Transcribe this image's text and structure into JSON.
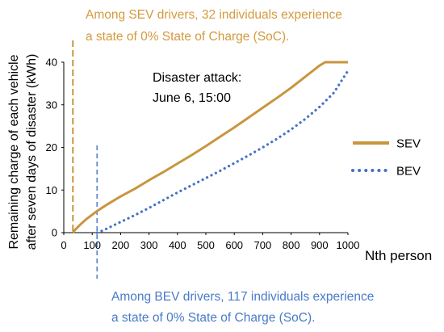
{
  "chart_data": {
    "type": "line",
    "ylabel_line1": "Remaining charge of each vehicle",
    "ylabel_line2": "after seven days of disaster (kWh)",
    "xlabel": "Nth person",
    "xlim": [
      0,
      1000
    ],
    "ylim": [
      0,
      40
    ],
    "x_ticks": [
      0,
      100,
      200,
      300,
      400,
      500,
      600,
      700,
      800,
      900,
      1000
    ],
    "y_ticks": [
      0,
      10,
      20,
      30,
      40
    ],
    "grid": false,
    "legend_position": "right",
    "colors": {
      "SEV": "#C8963E",
      "BEV": "#4472C4",
      "sev_annotation": "#D39A3F",
      "bev_annotation": "#4A7AC8"
    },
    "series": [
      {
        "name": "SEV",
        "style": "solid",
        "x": [
          32,
          40,
          60,
          80,
          100,
          120,
          150,
          200,
          250,
          300,
          350,
          400,
          450,
          500,
          550,
          600,
          650,
          700,
          750,
          800,
          850,
          900,
          920,
          950,
          1000
        ],
        "y": [
          0,
          0.7,
          2,
          3.2,
          4.2,
          5.2,
          6.5,
          8.5,
          10.3,
          12.3,
          14.2,
          16.2,
          18.2,
          20.3,
          22.5,
          24.7,
          27,
          29.3,
          31.6,
          34,
          36.6,
          39.2,
          40,
          40,
          40
        ]
      },
      {
        "name": "BEV",
        "style": "dotted",
        "x": [
          117,
          130,
          150,
          200,
          250,
          300,
          350,
          400,
          450,
          500,
          550,
          600,
          650,
          700,
          750,
          800,
          850,
          900,
          950,
          1000
        ],
        "y": [
          0,
          0.3,
          0.9,
          2.5,
          4.1,
          5.8,
          7.6,
          9.4,
          11.1,
          12.8,
          14.5,
          16.3,
          18.1,
          20,
          22,
          24.2,
          26.7,
          29.5,
          32.8,
          38
        ]
      }
    ],
    "vlines": [
      {
        "x": 32,
        "series": "SEV"
      },
      {
        "x": 117,
        "series": "BEV"
      }
    ],
    "annotations": {
      "sev_line1": "Among SEV drivers, 32 individuals experience",
      "sev_line2": "a state of 0% State of Charge (SoC).",
      "bev_line1": "Among BEV drivers, 117 individuals experience",
      "bev_line2": "a state of 0% State of Charge (SoC).",
      "disaster_line1": "Disaster attack:",
      "disaster_line2": "June 6, 15:00"
    }
  }
}
